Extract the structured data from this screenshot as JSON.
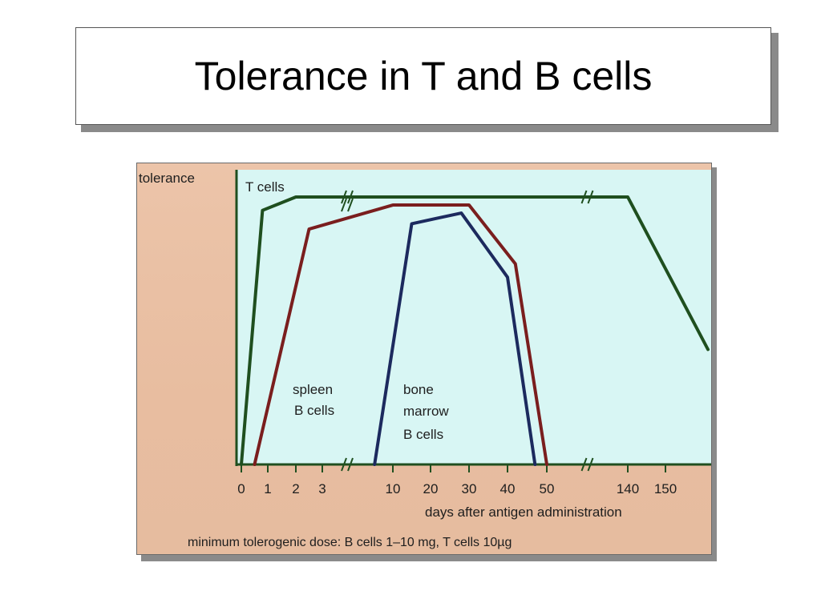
{
  "slide": {
    "title": "Tolerance in T and B cells"
  },
  "chart_data": {
    "type": "line",
    "ylabel": "tolerance",
    "xlabel": "days after antigen administration",
    "footnote": "minimum tolerogenic dose: B cells 1–10 mg, T cells 10µg",
    "x_ticks": [
      "0",
      "1",
      "2",
      "3",
      "10",
      "20",
      "30",
      "40",
      "50",
      "140",
      "150"
    ],
    "axis_breaks": true,
    "series": [
      {
        "name": "T cells",
        "color": "#1f4f1f",
        "points": [
          [
            0,
            0
          ],
          [
            0.8,
            0.95
          ],
          [
            2,
            1.0
          ],
          [
            50,
            1.0
          ],
          [
            140,
            1.0
          ],
          [
            155,
            0.43
          ]
        ]
      },
      {
        "name": "spleen B cells",
        "color": "#7a1e1e",
        "points": [
          [
            0.5,
            0
          ],
          [
            2.5,
            0.88
          ],
          [
            10,
            0.97
          ],
          [
            30,
            0.97
          ],
          [
            42,
            0.75
          ],
          [
            50,
            0
          ]
        ]
      },
      {
        "name": "bone marrow B cells",
        "color": "#1c2a5e",
        "points": [
          [
            8,
            0
          ],
          [
            15,
            0.9
          ],
          [
            28,
            0.94
          ],
          [
            40,
            0.7
          ],
          [
            47,
            0
          ]
        ]
      }
    ],
    "series_labels": [
      {
        "series": "spleen B cells",
        "lines": [
          "spleen",
          "B cells"
        ]
      },
      {
        "series": "bone marrow B cells",
        "lines": [
          "bone",
          "marrow",
          "B cells"
        ]
      }
    ]
  }
}
